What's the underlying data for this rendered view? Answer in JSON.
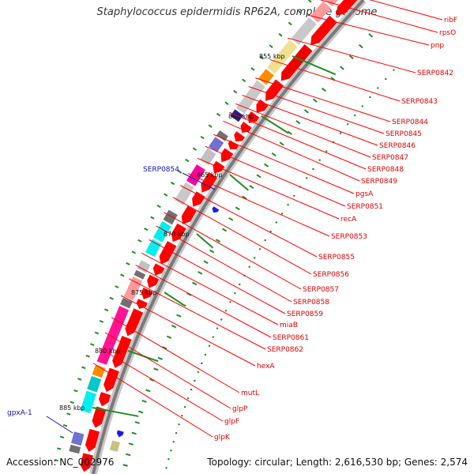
{
  "title": "Staphylococcus epidermidis RP62A, complete genome",
  "accession": "Accession: NC_002976",
  "summary": "Topology: circular; Length: 2,616,530 bp; Genes: 2,574",
  "colors": {
    "gene_label_forward": "#dd0000",
    "gene_label_reverse": "#1010c0",
    "tick_green": "#238c23",
    "backbone": "#808080"
  },
  "ticks": [
    "855 kbp",
    "860 kbp",
    "865 kbp",
    "870 kbp",
    "875 kbp",
    "880 kbp",
    "885 kbp"
  ],
  "reverse_genes": [
    "SERP0854",
    "gpxA-1"
  ],
  "forward_genes": [
    "ribF",
    "rpsO",
    "pnp",
    "SERP0842",
    "SERP0843",
    "SERP0844",
    "SERP0845",
    "SERP0846",
    "SERP0847",
    "SERP0848",
    "SERP0849",
    "pgsA",
    "SERP0851",
    "recA",
    "SERP0853",
    "SERP0855",
    "SERP0856",
    "SERP0857",
    "SERP0858",
    "SERP0859",
    "miaB",
    "SERP0861",
    "SERP0862",
    "hexA",
    "mutL",
    "glpP",
    "glpF",
    "glpK"
  ]
}
